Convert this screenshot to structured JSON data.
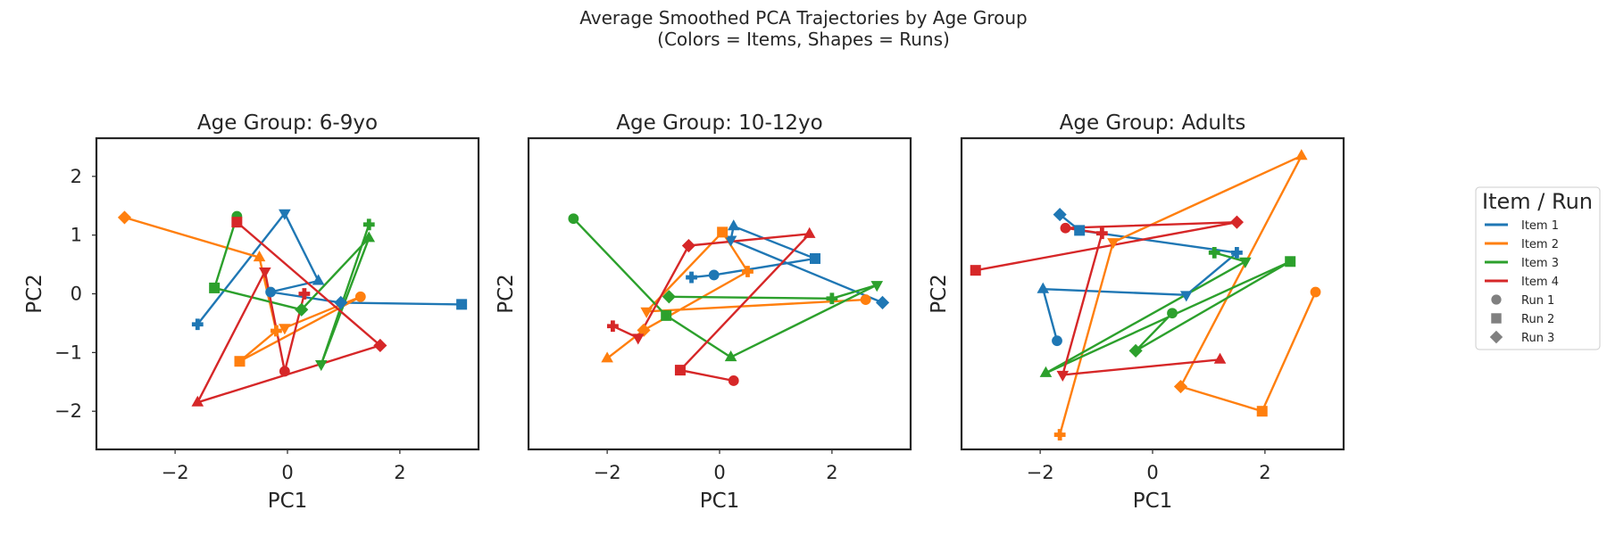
{
  "figure": {
    "suptitle_lines": [
      "Average Smoothed PCA Trajectories by Age Group",
      "(Colors = Items, Shapes = Runs)"
    ]
  },
  "legend": {
    "title": "Item / Run",
    "items": [
      {
        "label": "Item 1",
        "kind": "line",
        "color": "#1f77b4"
      },
      {
        "label": "Item 2",
        "kind": "line",
        "color": "#ff7f0e"
      },
      {
        "label": "Item 3",
        "kind": "line",
        "color": "#2ca02c"
      },
      {
        "label": "Item 4",
        "kind": "line",
        "color": "#d62728"
      },
      {
        "label": "Run 1",
        "kind": "marker",
        "marker": "circle",
        "color": "#808080"
      },
      {
        "label": "Run 2",
        "kind": "marker",
        "marker": "square",
        "color": "#808080"
      },
      {
        "label": "Run 3",
        "kind": "marker",
        "marker": "diamond",
        "color": "#808080"
      }
    ]
  },
  "chart_data": [
    {
      "type": "line",
      "title": "Age Group: 6-9yo",
      "xlabel": "PC1",
      "ylabel": "PC2",
      "xlim": [
        -3.4,
        3.4
      ],
      "ylim": [
        -2.65,
        2.65
      ],
      "xticks": [
        -2,
        0,
        2
      ],
      "yticks": [
        -2,
        -1,
        0,
        1,
        2
      ],
      "show_xticks": true,
      "show_yticks": true,
      "grid": false,
      "series": [
        {
          "item": "Item 1",
          "color": "#1f77b4",
          "points": [
            [
              -1.6,
              -0.52,
              "plus"
            ],
            [
              -0.05,
              1.37,
              "triangle-down"
            ],
            [
              0.55,
              0.22,
              "triangle-up"
            ],
            [
              -0.3,
              0.03,
              "circle"
            ],
            [
              0.95,
              -0.15,
              "diamond"
            ],
            [
              3.1,
              -0.18,
              "square"
            ]
          ]
        },
        {
          "item": "Item 2",
          "color": "#ff7f0e",
          "points": [
            [
              -2.9,
              1.3,
              "diamond"
            ],
            [
              -0.5,
              0.62,
              "triangle-up"
            ],
            [
              -0.2,
              -0.63,
              "plus"
            ],
            [
              -0.85,
              -1.15,
              "square"
            ],
            [
              1.3,
              -0.05,
              "circle"
            ],
            [
              -0.05,
              -0.58,
              "triangle-down"
            ]
          ]
        },
        {
          "item": "Item 3",
          "color": "#2ca02c",
          "points": [
            [
              -0.9,
              1.32,
              "circle"
            ],
            [
              -1.3,
              0.1,
              "square"
            ],
            [
              0.25,
              -0.27,
              "diamond"
            ],
            [
              1.45,
              0.95,
              "triangle-up"
            ],
            [
              0.6,
              -1.2,
              "triangle-down"
            ],
            [
              1.45,
              1.18,
              "plus"
            ]
          ]
        },
        {
          "item": "Item 4",
          "color": "#d62728",
          "points": [
            [
              -0.9,
              1.22,
              "square"
            ],
            [
              1.65,
              -0.88,
              "diamond"
            ],
            [
              -1.6,
              -1.85,
              "triangle-up"
            ],
            [
              -0.4,
              0.38,
              "triangle-down"
            ],
            [
              -0.05,
              -1.32,
              "circle"
            ],
            [
              0.3,
              0.0,
              "plus"
            ]
          ]
        }
      ]
    },
    {
      "type": "line",
      "title": "Age Group: 10-12yo",
      "xlabel": "PC1",
      "ylabel": "PC2",
      "xlim": [
        -3.4,
        3.4
      ],
      "ylim": [
        -2.65,
        2.65
      ],
      "xticks": [
        -2,
        0,
        2
      ],
      "yticks": [
        -2,
        -1,
        0,
        1,
        2
      ],
      "show_xticks": true,
      "show_yticks": false,
      "grid": false,
      "series": [
        {
          "item": "Item 1",
          "color": "#1f77b4",
          "points": [
            [
              -0.5,
              0.28,
              "plus"
            ],
            [
              -0.1,
              0.32,
              "circle"
            ],
            [
              1.7,
              0.6,
              "square"
            ],
            [
              0.25,
              1.15,
              "triangle-up"
            ],
            [
              0.2,
              0.92,
              "triangle-down"
            ],
            [
              2.9,
              -0.15,
              "diamond"
            ]
          ]
        },
        {
          "item": "Item 2",
          "color": "#ff7f0e",
          "points": [
            [
              -2.0,
              -1.1,
              "triangle-up"
            ],
            [
              -1.35,
              -0.62,
              "diamond"
            ],
            [
              0.5,
              0.38,
              "plus"
            ],
            [
              0.05,
              1.05,
              "square"
            ],
            [
              -1.3,
              -0.3,
              "triangle-down"
            ],
            [
              2.6,
              -0.1,
              "circle"
            ]
          ]
        },
        {
          "item": "Item 3",
          "color": "#2ca02c",
          "points": [
            [
              -2.6,
              1.28,
              "circle"
            ],
            [
              -0.95,
              -0.37,
              "square"
            ],
            [
              0.2,
              -1.08,
              "triangle-up"
            ],
            [
              2.8,
              0.15,
              "triangle-down"
            ],
            [
              2.0,
              -0.08,
              "plus"
            ],
            [
              -0.9,
              -0.05,
              "diamond"
            ]
          ]
        },
        {
          "item": "Item 4",
          "color": "#d62728",
          "points": [
            [
              -1.9,
              -0.55,
              "plus"
            ],
            [
              -1.45,
              -0.75,
              "triangle-down"
            ],
            [
              -0.55,
              0.82,
              "diamond"
            ],
            [
              1.6,
              1.02,
              "triangle-up"
            ],
            [
              -0.7,
              -1.3,
              "square"
            ],
            [
              0.25,
              -1.48,
              "circle"
            ]
          ]
        }
      ]
    },
    {
      "type": "line",
      "title": "Age Group: Adults",
      "xlabel": "PC1",
      "ylabel": "PC2",
      "xlim": [
        -3.4,
        3.4
      ],
      "ylim": [
        -2.65,
        2.65
      ],
      "xticks": [
        -2,
        0,
        2
      ],
      "yticks": [
        -2,
        -1,
        0,
        1,
        2
      ],
      "show_xticks": true,
      "show_yticks": false,
      "grid": false,
      "series": [
        {
          "item": "Item 1",
          "color": "#1f77b4",
          "points": [
            [
              -1.7,
              -0.8,
              "circle"
            ],
            [
              -1.95,
              0.08,
              "triangle-up"
            ],
            [
              0.6,
              -0.02,
              "triangle-down"
            ],
            [
              1.5,
              0.7,
              "plus"
            ],
            [
              -1.3,
              1.08,
              "square"
            ],
            [
              -1.65,
              1.35,
              "diamond"
            ]
          ]
        },
        {
          "item": "Item 2",
          "color": "#ff7f0e",
          "points": [
            [
              -1.65,
              -2.4,
              "plus"
            ],
            [
              -0.7,
              0.88,
              "triangle-down"
            ],
            [
              2.65,
              2.35,
              "triangle-up"
            ],
            [
              0.5,
              -1.58,
              "diamond"
            ],
            [
              1.95,
              -2.0,
              "square"
            ],
            [
              2.9,
              0.03,
              "circle"
            ]
          ]
        },
        {
          "item": "Item 3",
          "color": "#2ca02c",
          "points": [
            [
              1.1,
              0.7,
              "plus"
            ],
            [
              1.65,
              0.55,
              "triangle-down"
            ],
            [
              -1.9,
              -1.35,
              "triangle-up"
            ],
            [
              2.45,
              0.55,
              "square"
            ],
            [
              -0.3,
              -0.97,
              "diamond"
            ],
            [
              0.35,
              -0.33,
              "circle"
            ]
          ]
        },
        {
          "item": "Item 4",
          "color": "#d62728",
          "points": [
            [
              -3.15,
              0.4,
              "square"
            ],
            [
              1.5,
              1.22,
              "diamond"
            ],
            [
              -1.55,
              1.12,
              "circle"
            ],
            [
              -0.9,
              1.03,
              "plus"
            ],
            [
              -1.6,
              -1.38,
              "triangle-down"
            ],
            [
              1.2,
              -1.12,
              "triangle-up"
            ]
          ]
        }
      ]
    }
  ]
}
